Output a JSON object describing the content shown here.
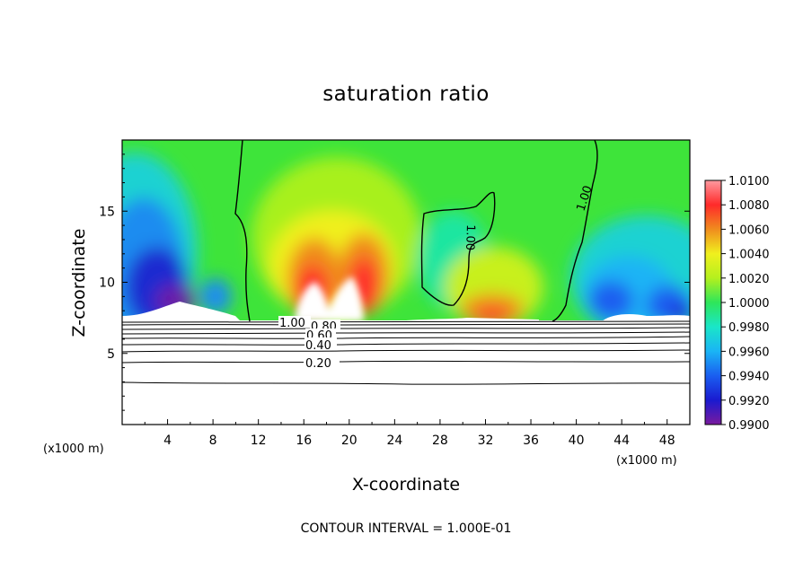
{
  "chart_data": {
    "type": "heatmap",
    "title": "saturation ratio",
    "xlabel": "X-coordinate",
    "ylabel": "Z-coordinate",
    "x_unit_left": "(x1000 m)",
    "x_unit_right": "(x1000 m)",
    "xlim": [
      0,
      50
    ],
    "ylim": [
      0,
      20
    ],
    "x_ticks": [
      4,
      8,
      12,
      16,
      20,
      24,
      28,
      32,
      36,
      40,
      44,
      48
    ],
    "y_ticks": [
      5,
      10,
      15
    ],
    "footer": "CONTOUR INTERVAL = 1.000E-01",
    "colorbar": {
      "range": [
        0.99,
        1.01
      ],
      "ticks": [
        "0.9900",
        "0.9920",
        "0.9940",
        "0.9960",
        "0.9980",
        "1.0000",
        "1.0020",
        "1.0040",
        "1.0060",
        "1.0080",
        "1.0100"
      ],
      "colors": [
        "#7a1a9e",
        "#1a1ad0",
        "#1a5ef0",
        "#1ab4f5",
        "#1ae6c8",
        "#2ee65a",
        "#b4f01e",
        "#f0f01e",
        "#f08c1e",
        "#ff2a2a",
        "#ff9aa0"
      ]
    },
    "contour_labels": [
      "1.00",
      "1.00",
      "1.00",
      "0.80",
      "0.60",
      "0.40",
      "0.20"
    ],
    "contour_levels": [
      0.2,
      0.4,
      0.6,
      0.8,
      1.0
    ],
    "surface_level_z": 7.4,
    "grid": false
  }
}
